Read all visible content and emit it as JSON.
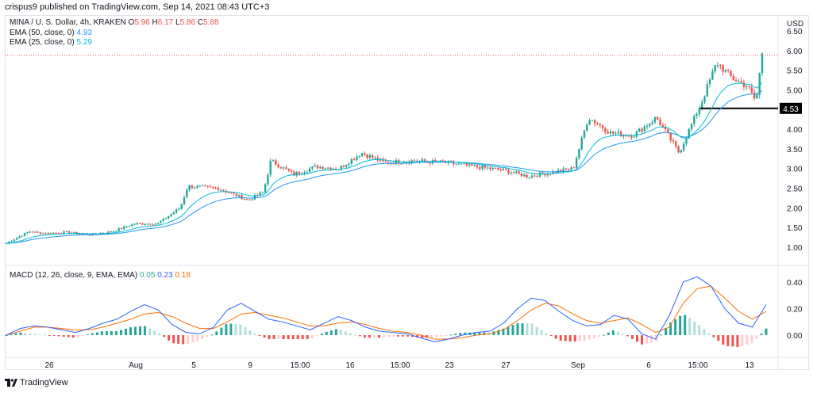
{
  "header": {
    "text": "crispus9 published on TradingView.com, Sep 14, 2021 08:43 UTC+3"
  },
  "legend": {
    "symbol": "MINA / U. S. Dollar, 4h, KRAKEN",
    "o_label": "O",
    "o_value": "5.96",
    "h_label": "H",
    "h_value": "6.17",
    "l_label": "L",
    "l_value": "5.86",
    "c_label": "C",
    "c_value": "5.88",
    "ema50_label": "EMA (50, close, 0)",
    "ema50_value": "4.93",
    "ema25_label": "EMA (25, close, 0)",
    "ema25_value": "5.29",
    "macd_label": "MACD (12, 26, close, 9, EMA, EMA)",
    "macd_hist": "0.05",
    "macd_line": "0.23",
    "macd_signal": "0.18"
  },
  "price_axis": {
    "currency": "USD",
    "ticks": [
      "6.50",
      "6.00",
      "5.50",
      "5.00",
      "4.50",
      "4.00",
      "3.50",
      "3.00",
      "2.50",
      "2.00",
      "1.50",
      "1.00"
    ],
    "marker_label": "4.53"
  },
  "macd_axis": {
    "ticks": [
      "0.40",
      "0.20",
      "0.00"
    ]
  },
  "time_axis": {
    "labels": [
      "26",
      "Aug",
      "5",
      "9",
      "15:00",
      "16",
      "15:00",
      "23",
      "27",
      "Sep",
      "6",
      "15:00",
      "13"
    ]
  },
  "footer": {
    "brand": "TradingView"
  },
  "colors": {
    "up": "#26a69a",
    "down": "#ef5350",
    "ema50": "#2196f3",
    "ema25": "#00bcd4",
    "macd": "#2962ff",
    "signal": "#ff6d00",
    "hist_up": "#26a69a",
    "hist_up_light": "#b2dfdb",
    "hist_down": "#ef5350",
    "hist_down_light": "#ffcdd2"
  },
  "chart_data": [
    {
      "type": "candlestick",
      "title": "MINA / U. S. Dollar, 4h, KRAKEN",
      "ylabel": "USD",
      "ylim": [
        0.9,
        6.6
      ],
      "x_labels": [
        "26",
        "Aug",
        "5",
        "9",
        "15:00",
        "16",
        "15:00",
        "23",
        "27",
        "Sep",
        "6",
        "15:00",
        "13"
      ],
      "close_path": [
        {
          "x": 0,
          "y": 1.1
        },
        {
          "x": 15,
          "y": 1.4
        },
        {
          "x": 25,
          "y": 1.35
        },
        {
          "x": 40,
          "y": 1.38
        },
        {
          "x": 55,
          "y": 1.32
        },
        {
          "x": 70,
          "y": 1.4
        },
        {
          "x": 85,
          "y": 1.6
        },
        {
          "x": 100,
          "y": 1.6
        },
        {
          "x": 115,
          "y": 2.0
        },
        {
          "x": 120,
          "y": 2.55
        },
        {
          "x": 140,
          "y": 2.5
        },
        {
          "x": 160,
          "y": 2.2
        },
        {
          "x": 170,
          "y": 2.4
        },
        {
          "x": 175,
          "y": 3.2
        },
        {
          "x": 190,
          "y": 2.85
        },
        {
          "x": 205,
          "y": 3.05
        },
        {
          "x": 220,
          "y": 3.0
        },
        {
          "x": 235,
          "y": 3.4
        },
        {
          "x": 250,
          "y": 3.15
        },
        {
          "x": 270,
          "y": 3.2
        },
        {
          "x": 290,
          "y": 3.15
        },
        {
          "x": 310,
          "y": 3.05
        },
        {
          "x": 330,
          "y": 2.95
        },
        {
          "x": 345,
          "y": 2.8
        },
        {
          "x": 360,
          "y": 2.9
        },
        {
          "x": 375,
          "y": 3.0
        },
        {
          "x": 385,
          "y": 4.3
        },
        {
          "x": 400,
          "y": 3.9
        },
        {
          "x": 415,
          "y": 3.85
        },
        {
          "x": 430,
          "y": 4.3
        },
        {
          "x": 445,
          "y": 3.4
        },
        {
          "x": 460,
          "y": 4.7
        },
        {
          "x": 470,
          "y": 5.7
        },
        {
          "x": 480,
          "y": 5.3
        },
        {
          "x": 490,
          "y": 5.1
        },
        {
          "x": 496,
          "y": 4.7
        },
        {
          "x": 500,
          "y": 5.95
        }
      ],
      "series": [
        {
          "name": "EMA (50, close, 0)",
          "last": 4.93
        },
        {
          "name": "EMA (25, close, 0)",
          "last": 5.29
        }
      ],
      "horizontal_level": 4.53,
      "last_price_line": 5.88
    },
    {
      "type": "line",
      "title": "MACD (12, 26, close, 9, EMA, EMA)",
      "ylim": [
        -0.06,
        0.46
      ],
      "series": [
        {
          "name": "MACD",
          "last": 0.23,
          "path": [
            0.0,
            0.05,
            0.07,
            0.06,
            0.04,
            0.02,
            0.05,
            0.09,
            0.12,
            0.18,
            0.23,
            0.19,
            0.08,
            0.02,
            0.01,
            0.06,
            0.19,
            0.24,
            0.18,
            0.12,
            0.1,
            0.07,
            0.04,
            0.09,
            0.14,
            0.11,
            0.06,
            0.03,
            0.02,
            0.01,
            -0.02,
            -0.05,
            -0.03,
            0.0,
            0.02,
            0.03,
            0.09,
            0.2,
            0.28,
            0.26,
            0.18,
            0.11,
            0.07,
            0.08,
            0.15,
            0.12,
            0.01,
            -0.03,
            0.15,
            0.4,
            0.44,
            0.37,
            0.2,
            0.09,
            0.06,
            0.23
          ]
        },
        {
          "name": "Signal",
          "last": 0.18,
          "path": [
            0.0,
            0.03,
            0.06,
            0.06,
            0.05,
            0.04,
            0.04,
            0.06,
            0.09,
            0.12,
            0.16,
            0.17,
            0.14,
            0.09,
            0.05,
            0.05,
            0.1,
            0.16,
            0.17,
            0.15,
            0.13,
            0.1,
            0.07,
            0.07,
            0.09,
            0.1,
            0.08,
            0.05,
            0.03,
            0.02,
            0.0,
            -0.03,
            -0.03,
            -0.02,
            0.0,
            0.01,
            0.04,
            0.11,
            0.19,
            0.24,
            0.22,
            0.16,
            0.11,
            0.09,
            0.11,
            0.13,
            0.08,
            0.02,
            0.06,
            0.24,
            0.35,
            0.37,
            0.28,
            0.18,
            0.12,
            0.18
          ]
        }
      ],
      "histogram_last": 0.05
    }
  ]
}
